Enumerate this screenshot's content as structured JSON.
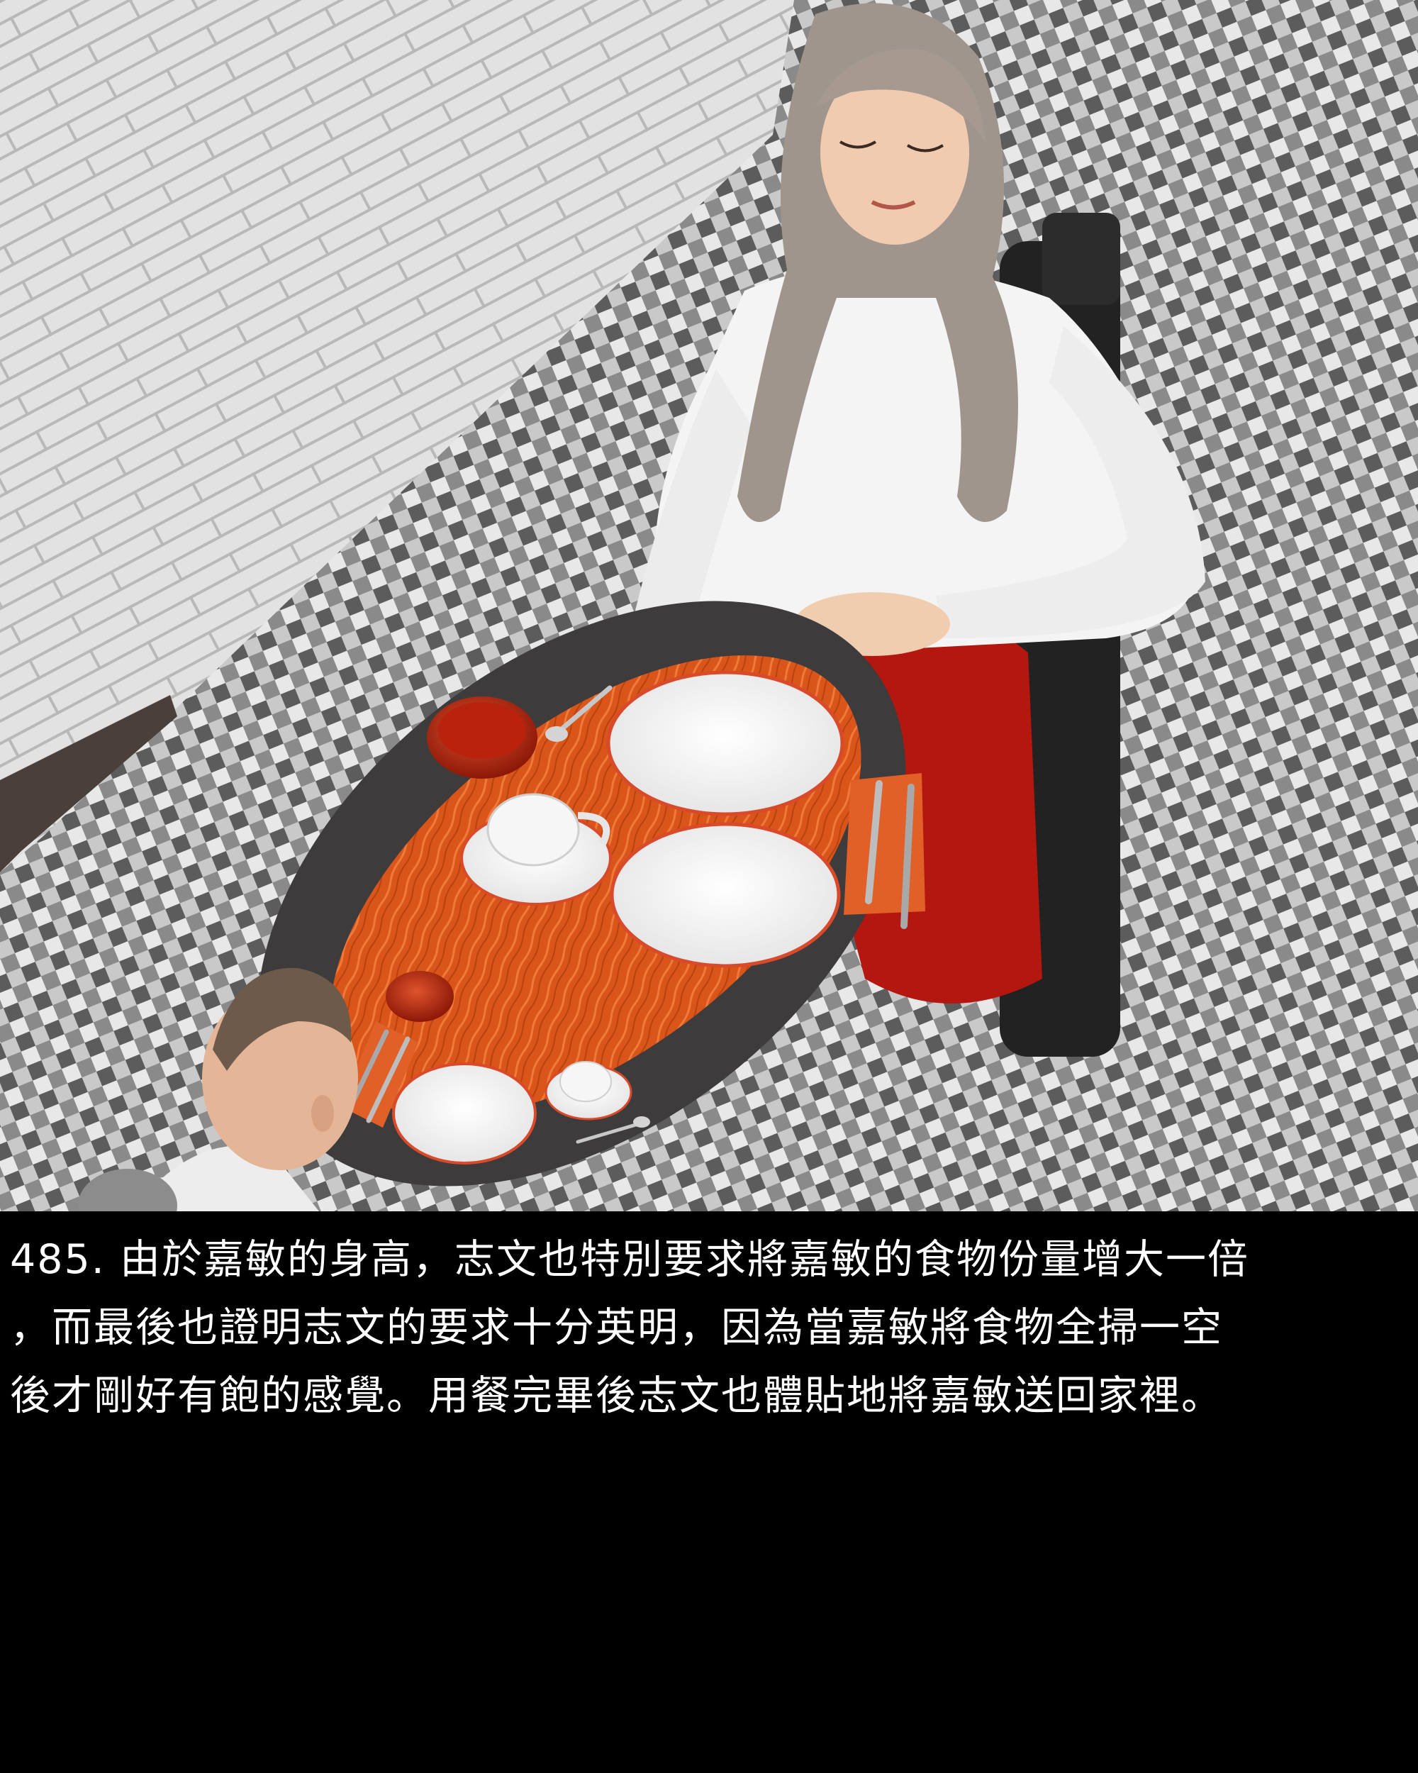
{
  "panel": {
    "caption_lines": [
      "485. 由於嘉敏的身高，志文也特別要求將嘉敏的食物份量增大一倍",
      "，而最後也證明志文的要求十分英明，因為當嘉敏將食物全掃一空",
      "後才剛好有飽的感覺。用餐完畢後志文也體貼地將嘉敏送回家裡。"
    ]
  },
  "colors": {
    "caption_background": "#000000",
    "caption_text": "#ffffff",
    "wall": "#dcdcdc",
    "floor_dark": "#5c5c5c",
    "floor_light": "#e8e8e8",
    "table_rim": "#3d3b3b",
    "table_top": "#d9551a",
    "sweater": "#f4f4f4",
    "skirt": "#b3170f",
    "hair_woman": "#9f958c",
    "hair_man": "#6e5a4a",
    "plate": "#ffffff",
    "bowl": "#c42a10"
  }
}
